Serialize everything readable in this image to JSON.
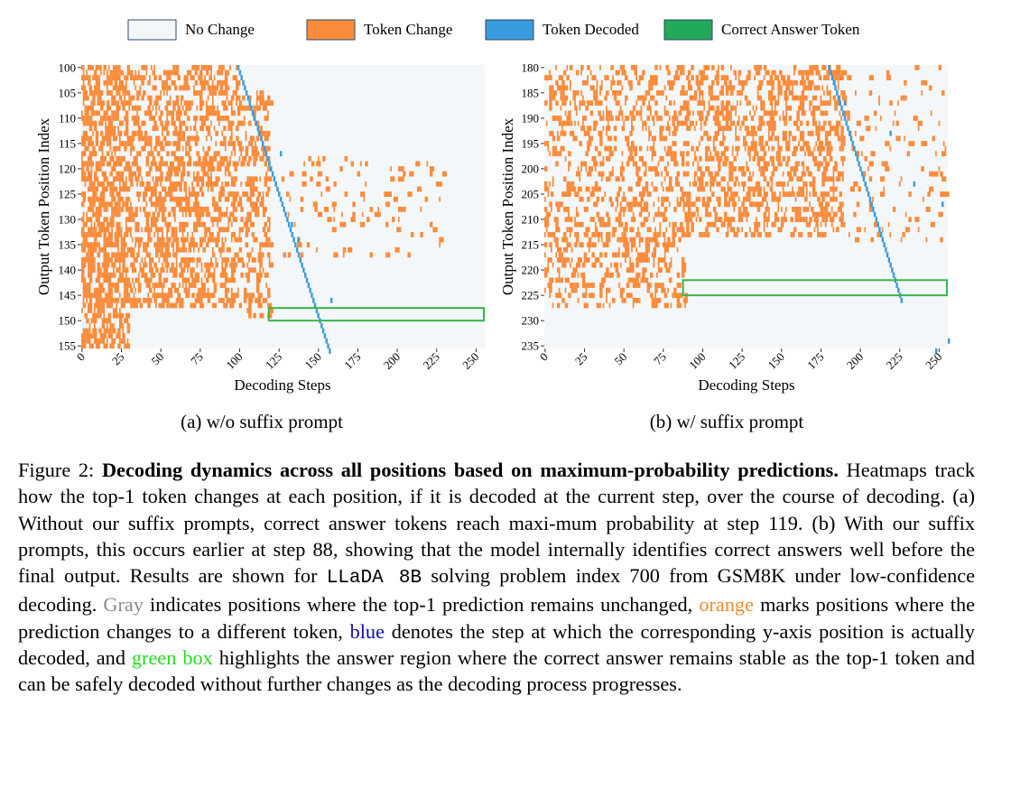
{
  "legend": [
    {
      "label": "No Change",
      "color": "#f4f7fa"
    },
    {
      "label": "Token Change",
      "color": "#fb8c3c"
    },
    {
      "label": "Token Decoded",
      "color": "#3a9bdc"
    },
    {
      "label": "Correct Answer Token",
      "color": "#22aa5a"
    }
  ],
  "colors": {
    "no_change": "#f4f7fa",
    "token_change": "#fb8c3c",
    "token_decoded": "#3a9bdc",
    "answer_box": "#3ab54a"
  },
  "chart_data": [
    {
      "type": "heatmap",
      "subtitle": "(a) w/o suffix prompt",
      "xlabel": "Decoding Steps",
      "ylabel": "Output Token Position Index",
      "xlim": [
        0,
        256
      ],
      "ylim": [
        100,
        156
      ],
      "xticks": [
        0,
        25,
        50,
        75,
        100,
        125,
        150,
        175,
        200,
        225,
        250
      ],
      "yticks": [
        100,
        105,
        110,
        115,
        120,
        125,
        130,
        135,
        140,
        145,
        150,
        155
      ],
      "decoded_diagonal": {
        "from": [
          99,
          100
        ],
        "to": [
          157,
          156
        ]
      },
      "decoded_points": [
        [
          126,
          117
        ],
        [
          133,
          131
        ],
        [
          137,
          134
        ],
        [
          158,
          146
        ]
      ],
      "answer_box": {
        "step_start": 119,
        "step_end": 256,
        "pos_start": 148,
        "pos_end": 150.5
      },
      "change_density": [
        {
          "steps": [
            0,
            30
          ],
          "positions": [
            100,
            156
          ],
          "density": 0.5
        },
        {
          "steps": [
            30,
            100
          ],
          "positions": [
            100,
            148
          ],
          "density": 0.35
        },
        {
          "steps": [
            100,
            120
          ],
          "positions": [
            105,
            150
          ],
          "density": 0.25
        },
        {
          "steps": [
            125,
            230
          ],
          "positions": [
            118,
            138
          ],
          "density": 0.05
        }
      ]
    },
    {
      "type": "heatmap",
      "subtitle": "(b) w/ suffix prompt",
      "xlabel": "Decoding Steps",
      "ylabel": "Output Token Position Index",
      "xlim": [
        0,
        256
      ],
      "ylim": [
        180,
        236
      ],
      "xticks": [
        0,
        25,
        50,
        75,
        100,
        125,
        150,
        175,
        200,
        225,
        250
      ],
      "yticks": [
        180,
        185,
        190,
        195,
        200,
        205,
        210,
        215,
        220,
        225,
        230,
        235
      ],
      "decoded_diagonal": {
        "from": [
          180,
          180
        ],
        "to": [
          226,
          226
        ]
      },
      "decoded_points": [
        [
          190,
          187
        ],
        [
          219,
          193
        ],
        [
          234,
          203
        ],
        [
          252,
          207
        ],
        [
          248,
          236
        ],
        [
          256,
          234
        ]
      ],
      "answer_box": {
        "step_start": 88,
        "step_end": 256,
        "pos_start": 222.5,
        "pos_end": 225.5
      },
      "change_density": [
        {
          "steps": [
            0,
            90
          ],
          "positions": [
            180,
            228
          ],
          "density": 0.22
        },
        {
          "steps": [
            90,
            190
          ],
          "positions": [
            180,
            214
          ],
          "density": 0.3
        },
        {
          "steps": [
            190,
            256
          ],
          "positions": [
            180,
            215
          ],
          "density": 0.05
        }
      ]
    }
  ],
  "caption": {
    "figure_label": "Figure 2:",
    "title": "Decoding dynamics across all positions based on maximum-probability predictions.",
    "text1": "Heatmaps track how the top-1 token changes at each position, if it is decoded at the current step, over the course of decoding.  (a) Without our suffix prompts, correct answer tokens reach maxi-mum probability at step 119.  (b) With our suffix prompts, this occurs earlier at step 88, showing that the model internally identifies correct answers well before the final output. Results are shown for",
    "model": "LLaDA 8B",
    "text2": "solving problem index 700 from GSM8K under low-confidence decoding.",
    "gray": "Gray",
    "text3": "indicates positions where the top-1 prediction remains unchanged,",
    "orange": "orange",
    "text4": "marks positions where the prediction changes to a different token,",
    "blue": "blue",
    "text5": "denotes the step at which the corresponding y-axis position is actually decoded, and",
    "green": "green box",
    "text6": "highlights the answer region where the correct answer remains stable as the top-1 token and can be safely decoded without further changes as the decoding process progresses."
  }
}
